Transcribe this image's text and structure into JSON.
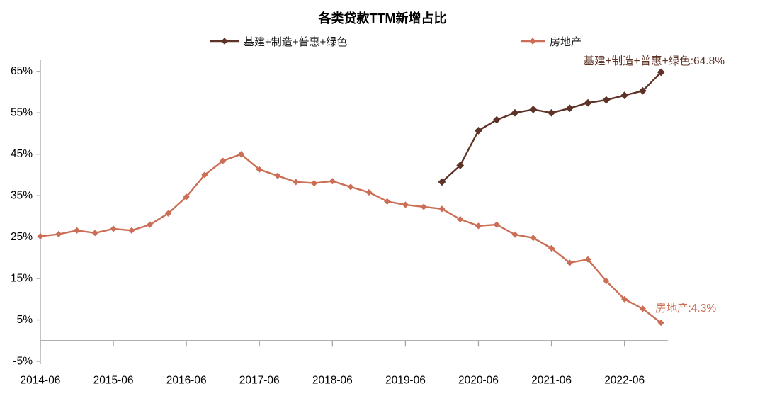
{
  "title": "各类贷款TTM新增占比",
  "legend": [
    {
      "label": "基建+制造+普惠+绿色",
      "color": "#5e3226"
    },
    {
      "label": "房地产",
      "color": "#cb6e55"
    }
  ],
  "chart_data": {
    "type": "line",
    "title": "各类贷款TTM新增占比",
    "categories": [
      "2014-06",
      "2014-09",
      "2014-12",
      "2015-03",
      "2015-06",
      "2015-09",
      "2015-12",
      "2016-03",
      "2016-06",
      "2016-09",
      "2016-12",
      "2017-03",
      "2017-06",
      "2017-09",
      "2017-12",
      "2018-03",
      "2018-06",
      "2018-09",
      "2018-12",
      "2019-03",
      "2019-06",
      "2019-09",
      "2019-12",
      "2020-03",
      "2020-06",
      "2020-09",
      "2020-12",
      "2021-03",
      "2021-06",
      "2021-09",
      "2021-12",
      "2022-03",
      "2022-06",
      "2022-09",
      "2022-12"
    ],
    "series": [
      {
        "name": "基建+制造+普惠+绿色",
        "color": "#5e3226",
        "start_index": 22,
        "values": [
          38.3,
          42.3,
          50.7,
          53.3,
          55.0,
          55.8,
          55.0,
          56.1,
          57.4,
          58.1,
          59.2,
          60.3,
          64.8
        ],
        "end_label": "基建+制造+普惠+绿色:64.8%"
      },
      {
        "name": "房地产",
        "color": "#cb6e55",
        "start_index": 0,
        "values": [
          25.2,
          25.7,
          26.6,
          26.0,
          27.0,
          26.6,
          28.0,
          30.7,
          34.7,
          40.0,
          43.4,
          45.0,
          41.3,
          39.8,
          38.3,
          38.0,
          38.5,
          37.1,
          35.8,
          33.6,
          32.8,
          32.3,
          31.8,
          29.3,
          27.7,
          28.0,
          25.6,
          24.8,
          22.3,
          18.8,
          19.6,
          14.4,
          10.0,
          7.7,
          4.3
        ],
        "end_label": "房地产:4.3%"
      }
    ],
    "x_tick_labels": [
      "2014-06",
      "2015-06",
      "2016-06",
      "2017-06",
      "2018-06",
      "2019-06",
      "2020-06",
      "2021-06",
      "2022-06"
    ],
    "x_tick_indices": [
      0,
      4,
      8,
      12,
      16,
      20,
      24,
      28,
      32
    ],
    "y_ticks": [
      65,
      55,
      45,
      35,
      25,
      15,
      5,
      -5
    ],
    "y_tick_suffix": "%",
    "ylim": [
      -5,
      65
    ],
    "grid": false,
    "legend_position": "top",
    "axis_color": "#a6a6a6",
    "text_color": "#000000"
  }
}
